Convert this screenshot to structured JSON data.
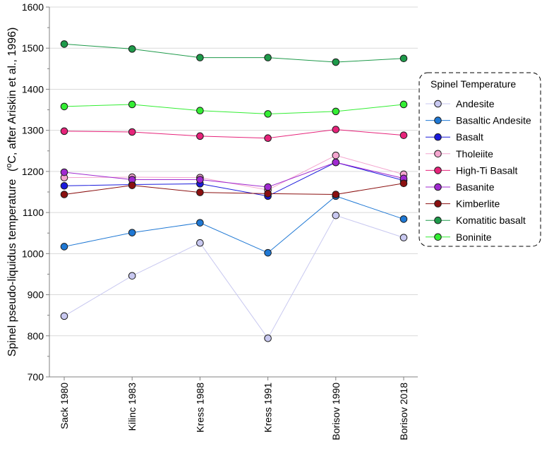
{
  "chart_data": {
    "type": "line",
    "title": "",
    "xlabel": "",
    "ylabel_main": "Spinel pseudo-liquidus temperature",
    "ylabel_unit": "(",
    "ylabel_unit_sup": "o",
    "ylabel_unit_rest": "C, after Ariskin et al., 1996)",
    "ylim": [
      700,
      1600
    ],
    "yticks": [
      700,
      800,
      900,
      1000,
      1100,
      1200,
      1300,
      1400,
      1500,
      1600
    ],
    "grid": true,
    "legend_position": "right",
    "legend_title": "Spinel Temperature",
    "categories": [
      "Sack 1980",
      "Kilinc 1983",
      "Kress 1988",
      "Kress 1991",
      "Borisov 1990",
      "Borisov 2018"
    ],
    "series": [
      {
        "name": "Andesite",
        "color": "#c8c8f0",
        "values": [
          848,
          946,
          1026,
          794,
          1093,
          1039
        ]
      },
      {
        "name": "Basaltic Andesite",
        "color": "#1f78d4",
        "values": [
          1017,
          1051,
          1075,
          1002,
          1140,
          1084
        ]
      },
      {
        "name": "Basalt",
        "color": "#1a1adc",
        "values": [
          1165,
          1168,
          1170,
          1140,
          1222,
          1178
        ]
      },
      {
        "name": "Tholeiite",
        "color": "#f4a6cf",
        "values": [
          1185,
          1186,
          1185,
          1155,
          1239,
          1193
        ]
      },
      {
        "name": "High-Ti Basalt",
        "color": "#e6237a",
        "values": [
          1298,
          1296,
          1286,
          1281,
          1302,
          1288
        ]
      },
      {
        "name": "Basanite",
        "color": "#a02ad0",
        "values": [
          1198,
          1180,
          1180,
          1162,
          1222,
          1183
        ]
      },
      {
        "name": "Kimberlite",
        "color": "#8b1010",
        "values": [
          1144,
          1166,
          1149,
          1146,
          1144,
          1171
        ]
      },
      {
        "name": "Komatitic basalt",
        "color": "#1e9a4a",
        "values": [
          1510,
          1498,
          1477,
          1477,
          1466,
          1475
        ]
      },
      {
        "name": "Boninite",
        "color": "#33ee33",
        "values": [
          1358,
          1363,
          1348,
          1340,
          1346,
          1363
        ]
      }
    ]
  }
}
